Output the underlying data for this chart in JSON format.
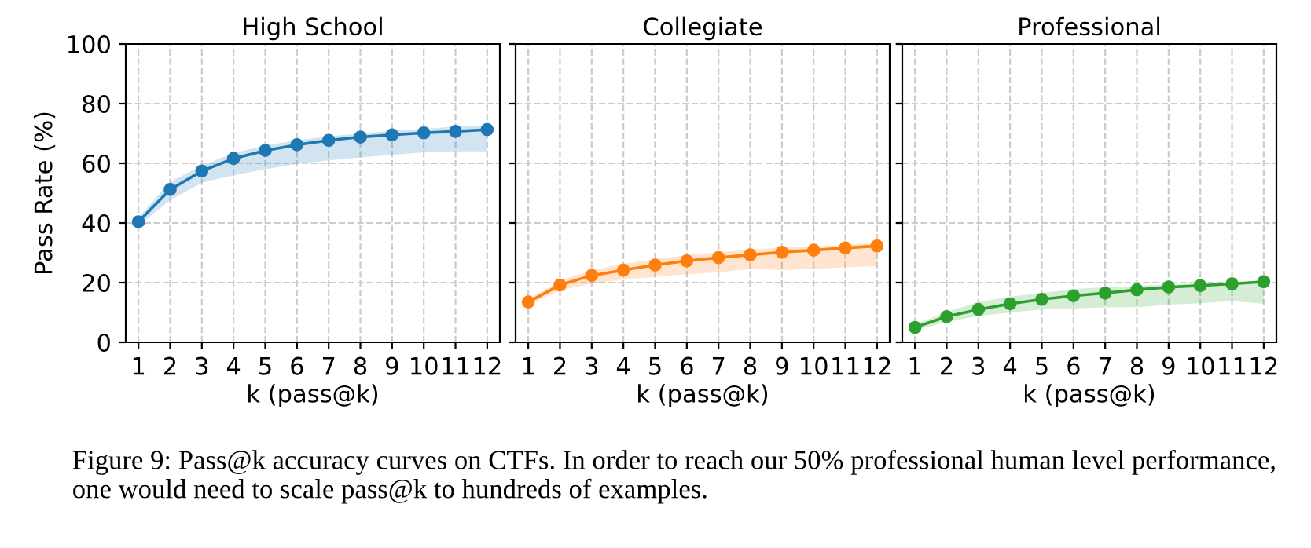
{
  "chart_data": [
    {
      "type": "line",
      "title": "High School",
      "xlabel": "k (pass@k)",
      "ylabel": "Pass Rate (%)",
      "x": [
        1,
        2,
        3,
        4,
        5,
        6,
        7,
        8,
        9,
        10,
        11,
        12
      ],
      "xlim": [
        0.6,
        12.4
      ],
      "xticks": [
        1,
        2,
        3,
        4,
        5,
        6,
        7,
        8,
        9,
        10,
        11,
        12
      ],
      "ylim": [
        0,
        100
      ],
      "yticks": [
        0,
        20,
        40,
        60,
        80,
        100
      ],
      "grid": true,
      "marker": "circle",
      "line_style": "solid",
      "series": [
        {
          "color": "#1f77b4",
          "values": [
            40.4,
            51.2,
            57.4,
            61.6,
            64.3,
            66.2,
            67.7,
            68.8,
            69.5,
            70.2,
            70.7,
            71.3
          ],
          "lower": [
            39,
            47.6,
            53.5,
            56,
            58,
            59.8,
            61,
            62,
            62.8,
            63.7,
            64,
            64
          ],
          "upper": [
            41.8,
            53.8,
            59.2,
            63.4,
            66,
            67.7,
            69,
            70,
            70.9,
            71.6,
            72.3,
            72.7
          ]
        }
      ],
      "annotations": [
        "Figure 9: Pass@k accuracy curves on CTFs. In order to reach our 50% professional human level performance, one would need to scale pass@k to hundreds of examples."
      ]
    },
    {
      "type": "line",
      "title": "Collegiate",
      "xlabel": "k (pass@k)",
      "x": [
        1,
        2,
        3,
        4,
        5,
        6,
        7,
        8,
        9,
        10,
        11,
        12
      ],
      "xlim": [
        0.6,
        12.4
      ],
      "xticks": [
        1,
        2,
        3,
        4,
        5,
        6,
        7,
        8,
        9,
        10,
        11,
        12
      ],
      "ylim": [
        0,
        100
      ],
      "yticks": [
        0,
        20,
        40,
        60,
        80,
        100
      ],
      "grid": true,
      "marker": "circle",
      "line_style": "solid",
      "tick_labels": "x",
      "series": [
        {
          "color": "#ff7f0e",
          "values": [
            13.5,
            19.2,
            22.4,
            24.2,
            25.9,
            27.3,
            28.4,
            29.3,
            30.2,
            30.9,
            31.6,
            32.3
          ],
          "lower": [
            12.6,
            17.4,
            19.7,
            21,
            21.9,
            22.8,
            23.5,
            24.6,
            24.2,
            24.6,
            25.1,
            25.5
          ],
          "upper": [
            14.4,
            20.6,
            24.2,
            26.4,
            27.8,
            29.3,
            30.2,
            31.1,
            31.8,
            32.1,
            32.7,
            33.2
          ]
        }
      ]
    },
    {
      "type": "line",
      "title": "Professional",
      "xlabel": "k (pass@k)",
      "x": [
        1,
        2,
        3,
        4,
        5,
        6,
        7,
        8,
        9,
        10,
        11,
        12
      ],
      "xlim": [
        0.6,
        12.4
      ],
      "xticks": [
        1,
        2,
        3,
        4,
        5,
        6,
        7,
        8,
        9,
        10,
        11,
        12
      ],
      "ylim": [
        0,
        100
      ],
      "yticks": [
        0,
        20,
        40,
        60,
        80,
        100
      ],
      "grid": true,
      "marker": "circle",
      "line_style": "solid",
      "tick_labels": "x",
      "series": [
        {
          "color": "#2ca02c",
          "values": [
            5,
            8.6,
            11,
            12.9,
            14.4,
            15.6,
            16.5,
            17.6,
            18.5,
            19,
            19.6,
            20.3
          ],
          "lower": [
            4.1,
            6.8,
            8.8,
            10,
            11,
            11.3,
            11.7,
            11.8,
            12.6,
            13.1,
            13.8,
            12.9
          ],
          "upper": [
            5.9,
            10.2,
            13.5,
            15.3,
            16.5,
            17.8,
            18.5,
            18.9,
            19.4,
            19.7,
            20.1,
            20.5
          ]
        }
      ]
    }
  ]
}
